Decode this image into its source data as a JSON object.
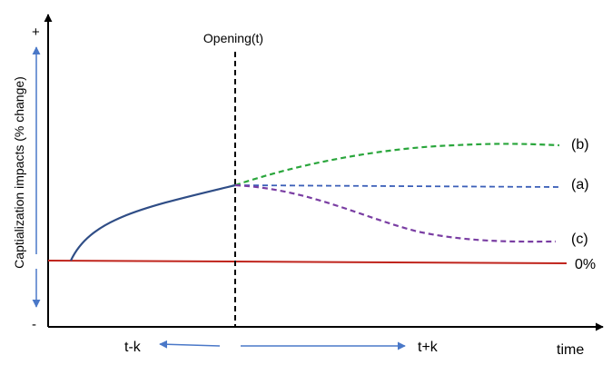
{
  "diagram": {
    "y_axis": {
      "label": "Captialization impacts (% change)",
      "plus": "+",
      "minus": "-"
    },
    "x_axis": {
      "label": "time",
      "before": "t-k",
      "after": "t+k"
    },
    "event": {
      "label": "Opening(t)"
    },
    "baseline": {
      "label": "0%",
      "color": "#c0241c"
    },
    "curves": [
      {
        "id": "pre",
        "label": "",
        "color": "#2f4d86"
      },
      {
        "id": "b",
        "label": "(b)",
        "color": "#2aa63c"
      },
      {
        "id": "a",
        "label": "(a)",
        "color": "#3b5fb8"
      },
      {
        "id": "c",
        "label": "(c)",
        "color": "#7a3ea3"
      }
    ],
    "arrow_color": "#4a78c8"
  }
}
